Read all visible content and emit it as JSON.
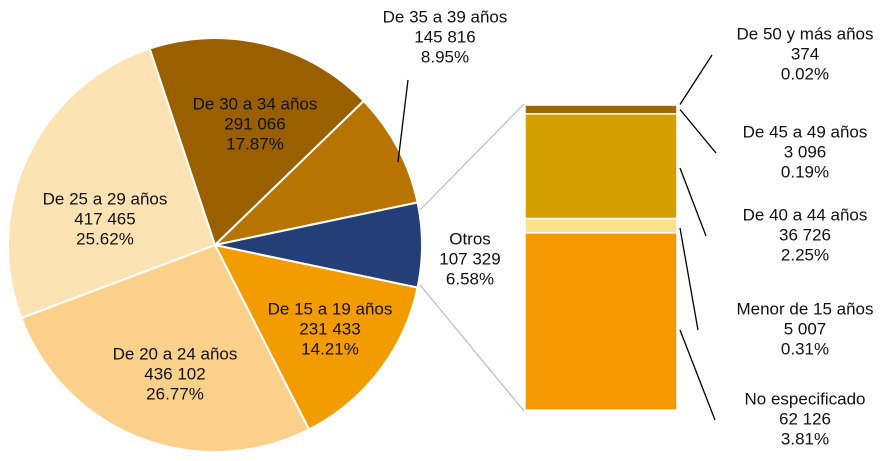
{
  "chart_data": [
    {
      "type": "pie",
      "categories": [
        "De 15 a 19 años",
        "De 20 a 24 años",
        "De 25 a 29 años",
        "De 30 a 34 años",
        "De 35 a 39 años",
        "Otros"
      ],
      "values": [
        231433,
        436102,
        417465,
        291066,
        145816,
        107329
      ],
      "value_labels": [
        "231 433",
        "436 102",
        "417 465",
        "291 066",
        "145 816",
        "107 329"
      ],
      "percentages": [
        14.21,
        26.77,
        25.62,
        17.87,
        8.95,
        6.58
      ],
      "percentage_labels": [
        "14.21%",
        "26.77%",
        "25.62%",
        "17.87%",
        "8.95%",
        "6.58%"
      ],
      "colors": [
        "#f39c00",
        "#fbd08a",
        "#fde2b4",
        "#9a6000",
        "#b87400",
        "#243f77"
      ]
    },
    {
      "type": "stacked-bar",
      "categories": [
        "De 50 y más años",
        "De 45 a 49 años",
        "De 40 a 44 años",
        "Menor de 15 años",
        "No especificado"
      ],
      "values": [
        374,
        3096,
        36726,
        5007,
        62126
      ],
      "value_labels": [
        "374",
        "3 096",
        "36 726",
        "5 007",
        "62 126"
      ],
      "percentages": [
        0.02,
        0.19,
        2.25,
        0.31,
        3.81
      ],
      "percentage_labels": [
        "0.02%",
        "0.19%",
        "2.25%",
        "0.31%",
        "3.81%"
      ],
      "colors": [
        "#8f5a00",
        "#9c6a00",
        "#d4a000",
        "#fde08a",
        "#f39800"
      ]
    }
  ]
}
